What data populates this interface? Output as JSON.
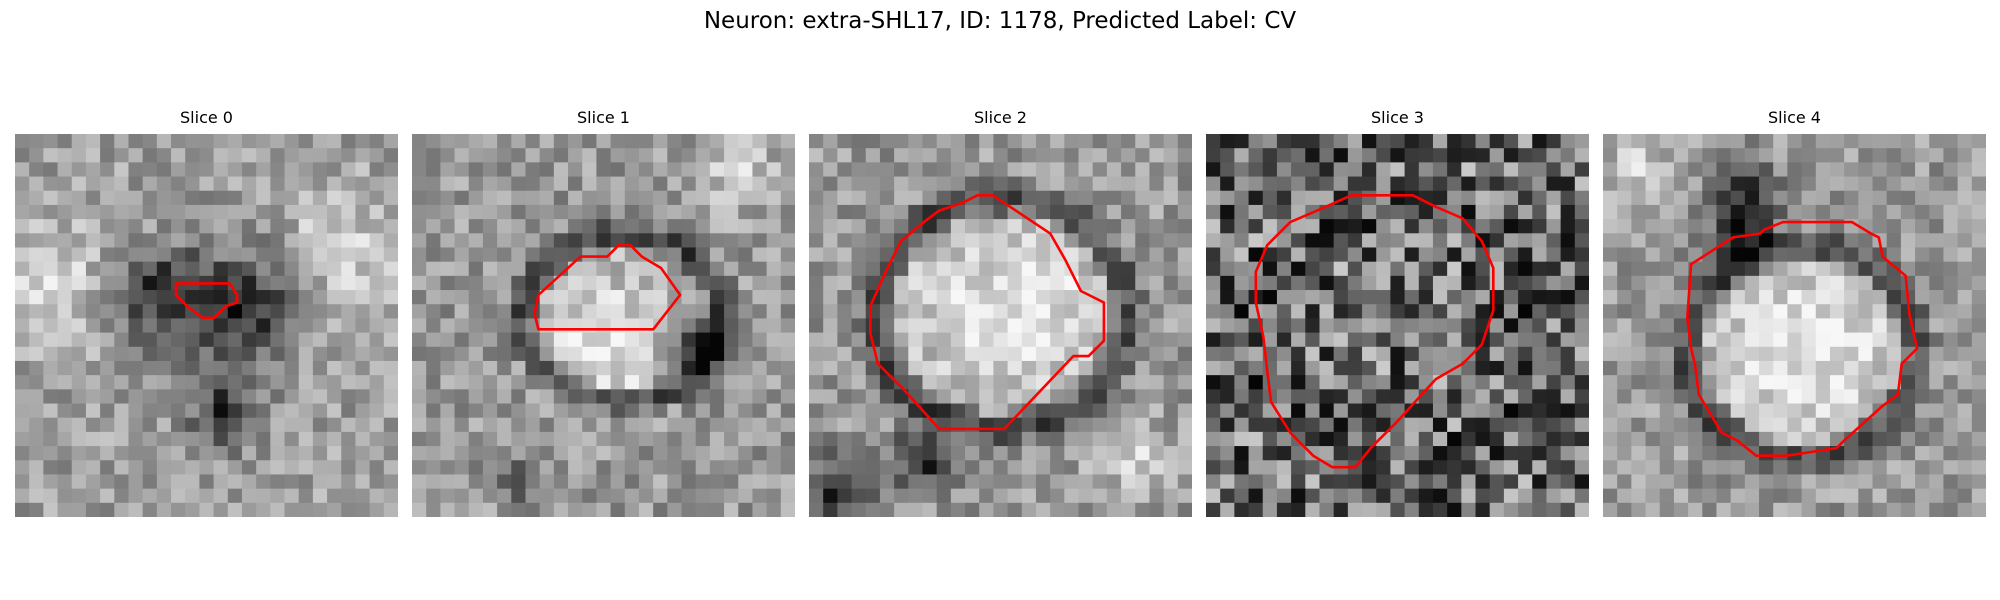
{
  "figure": {
    "title": "Neuron: extra-SHL17, ID: 1178, Predicted Label: CV"
  },
  "panels": [
    {
      "title": "Slice 0",
      "style": "faint",
      "seed": 11,
      "dark_spots": [
        [
          0.55,
          0.73,
          0.09
        ],
        [
          0.38,
          0.42,
          0.12
        ],
        [
          0.6,
          0.45,
          0.14
        ]
      ],
      "bright_spots": [
        [
          0.1,
          0.4,
          0.16
        ],
        [
          0.85,
          0.3,
          0.15
        ]
      ],
      "contour": [
        [
          0.42,
          0.39
        ],
        [
          0.56,
          0.39
        ],
        [
          0.58,
          0.42
        ],
        [
          0.58,
          0.44
        ],
        [
          0.55,
          0.45
        ],
        [
          0.52,
          0.48
        ],
        [
          0.49,
          0.48
        ],
        [
          0.45,
          0.45
        ],
        [
          0.42,
          0.42
        ]
      ]
    },
    {
      "title": "Slice 1",
      "style": "ring",
      "seed": 23,
      "ring": [
        0.55,
        0.48,
        0.26,
        0.22
      ],
      "dark_spots": [
        [
          0.28,
          0.9,
          0.05
        ],
        [
          0.75,
          0.55,
          0.08
        ]
      ],
      "bright_spots": [
        [
          0.5,
          0.55,
          0.14
        ],
        [
          0.85,
          0.1,
          0.1
        ]
      ],
      "contour": [
        [
          0.33,
          0.42
        ],
        [
          0.44,
          0.32
        ],
        [
          0.51,
          0.32
        ],
        [
          0.54,
          0.29
        ],
        [
          0.57,
          0.29
        ],
        [
          0.6,
          0.32
        ],
        [
          0.65,
          0.35
        ],
        [
          0.7,
          0.42
        ],
        [
          0.63,
          0.51
        ],
        [
          0.33,
          0.51
        ],
        [
          0.32,
          0.47
        ]
      ]
    },
    {
      "title": "Slice 2",
      "style": "ring",
      "seed": 37,
      "ring": [
        0.5,
        0.47,
        0.33,
        0.3
      ],
      "dark_spots": [
        [
          0.08,
          0.93,
          0.09
        ],
        [
          0.3,
          0.85,
          0.08
        ]
      ],
      "bright_spots": [
        [
          0.55,
          0.45,
          0.2
        ],
        [
          0.85,
          0.85,
          0.1
        ]
      ],
      "contour": [
        [
          0.34,
          0.2
        ],
        [
          0.4,
          0.18
        ],
        [
          0.44,
          0.16
        ],
        [
          0.48,
          0.16
        ],
        [
          0.54,
          0.2
        ],
        [
          0.63,
          0.26
        ],
        [
          0.67,
          0.33
        ],
        [
          0.71,
          0.41
        ],
        [
          0.77,
          0.44
        ],
        [
          0.77,
          0.54
        ],
        [
          0.73,
          0.58
        ],
        [
          0.69,
          0.58
        ],
        [
          0.51,
          0.77
        ],
        [
          0.34,
          0.77
        ],
        [
          0.25,
          0.67
        ],
        [
          0.18,
          0.6
        ],
        [
          0.16,
          0.52
        ],
        [
          0.16,
          0.45
        ],
        [
          0.2,
          0.36
        ],
        [
          0.24,
          0.28
        ],
        [
          0.3,
          0.23
        ]
      ]
    },
    {
      "title": "Slice 3",
      "style": "noisy",
      "seed": 53,
      "ring": [
        0.5,
        0.52,
        0.38,
        0.33
      ],
      "dark_spots": [],
      "bright_spots": [],
      "contour": [
        [
          0.29,
          0.2
        ],
        [
          0.38,
          0.16
        ],
        [
          0.44,
          0.16
        ],
        [
          0.54,
          0.16
        ],
        [
          0.6,
          0.19
        ],
        [
          0.67,
          0.22
        ],
        [
          0.72,
          0.28
        ],
        [
          0.75,
          0.35
        ],
        [
          0.75,
          0.46
        ],
        [
          0.72,
          0.55
        ],
        [
          0.67,
          0.6
        ],
        [
          0.6,
          0.64
        ],
        [
          0.5,
          0.75
        ],
        [
          0.43,
          0.82
        ],
        [
          0.39,
          0.87
        ],
        [
          0.33,
          0.87
        ],
        [
          0.28,
          0.84
        ],
        [
          0.22,
          0.78
        ],
        [
          0.17,
          0.7
        ],
        [
          0.16,
          0.62
        ],
        [
          0.15,
          0.53
        ],
        [
          0.13,
          0.44
        ],
        [
          0.13,
          0.36
        ],
        [
          0.16,
          0.29
        ],
        [
          0.22,
          0.23
        ]
      ]
    },
    {
      "title": "Slice 4",
      "style": "ring",
      "seed": 71,
      "ring": [
        0.52,
        0.57,
        0.3,
        0.28
      ],
      "dark_spots": [
        [
          0.37,
          0.18,
          0.09
        ],
        [
          0.35,
          0.3,
          0.07
        ]
      ],
      "bright_spots": [
        [
          0.55,
          0.55,
          0.2
        ],
        [
          0.1,
          0.1,
          0.1
        ]
      ],
      "contour": [
        [
          0.34,
          0.27
        ],
        [
          0.41,
          0.26
        ],
        [
          0.42,
          0.25
        ],
        [
          0.47,
          0.23
        ],
        [
          0.65,
          0.23
        ],
        [
          0.7,
          0.26
        ],
        [
          0.72,
          0.27
        ],
        [
          0.73,
          0.32
        ],
        [
          0.79,
          0.37
        ],
        [
          0.8,
          0.47
        ],
        [
          0.82,
          0.56
        ],
        [
          0.78,
          0.6
        ],
        [
          0.77,
          0.68
        ],
        [
          0.73,
          0.71
        ],
        [
          0.63,
          0.8
        ],
        [
          0.61,
          0.82
        ],
        [
          0.48,
          0.84
        ],
        [
          0.4,
          0.84
        ],
        [
          0.35,
          0.8
        ],
        [
          0.31,
          0.78
        ],
        [
          0.28,
          0.73
        ],
        [
          0.25,
          0.68
        ],
        [
          0.24,
          0.6
        ],
        [
          0.23,
          0.56
        ],
        [
          0.22,
          0.48
        ],
        [
          0.23,
          0.34
        ]
      ]
    }
  ],
  "colors": {
    "contour": "#ff0000"
  }
}
